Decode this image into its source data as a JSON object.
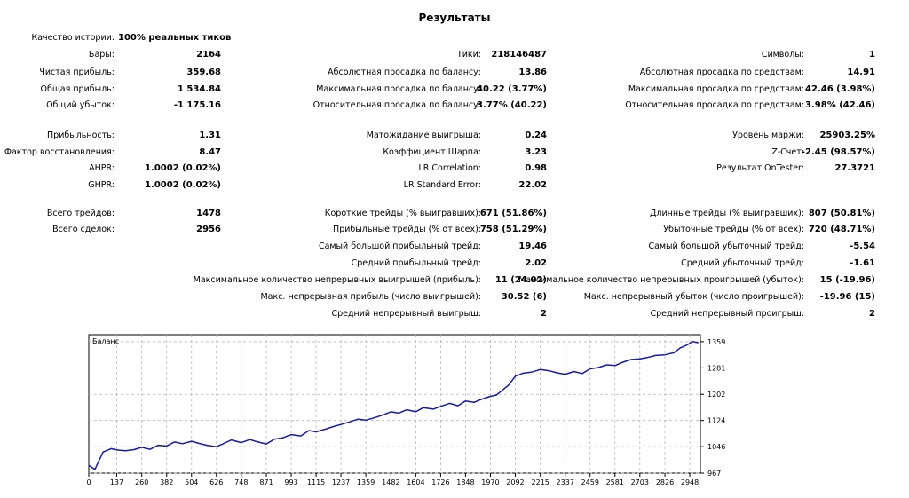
{
  "title": "Результаты",
  "history_quality": {
    "label": "Качество истории:",
    "value": "100% реальных тиков"
  },
  "col1": [
    {
      "id": "bars",
      "label": "Бары:",
      "value": "2164"
    },
    {
      "id": "net-profit",
      "label": "Чистая прибыль:",
      "value": "359.68"
    },
    {
      "id": "gross-profit",
      "label": "Общая прибыль:",
      "value": "1 534.84"
    },
    {
      "id": "gross-loss",
      "label": "Общий убыток:",
      "value": "-1 175.16"
    },
    {
      "id": "profitability",
      "label": "Прибыльность:",
      "value": "1.31"
    },
    {
      "id": "recovery-factor",
      "label": "Фактор восстановления:",
      "value": "8.47"
    },
    {
      "id": "ahpr",
      "label": "AHPR:",
      "value": "1.0002 (0.02%)"
    },
    {
      "id": "ghpr",
      "label": "GHPR:",
      "value": "1.0002 (0.02%)"
    },
    {
      "id": "total-trades",
      "label": "Всего трейдов:",
      "value": "1478"
    },
    {
      "id": "total-deals",
      "label": "Всего сделок:",
      "value": "2956"
    }
  ],
  "col2": [
    {
      "id": "ticks",
      "label": "Тики:",
      "value": "218146487"
    },
    {
      "id": "abs-dd-balance",
      "label": "Абсолютная просадка по балансу:",
      "value": "13.86"
    },
    {
      "id": "max-dd-balance",
      "label": "Максимальная просадка по балансу:",
      "value": "40.22 (3.77%)"
    },
    {
      "id": "rel-dd-balance",
      "label": "Относительная просадка по балансу:",
      "value": "3.77% (40.22)"
    },
    {
      "id": "expected-payoff",
      "label": "Матожидание выигрыша:",
      "value": "0.24"
    },
    {
      "id": "sharpe",
      "label": "Коэффициент Шарпа:",
      "value": "3.23"
    },
    {
      "id": "lr-correlation",
      "label": "LR Correlation:",
      "value": "0.98"
    },
    {
      "id": "lr-std-error",
      "label": "LR Standard Error:",
      "value": "22.02"
    },
    {
      "id": "short-trades",
      "label": "Короткие трейды (% выигравших):",
      "value": "671 (51.86%)"
    },
    {
      "id": "profit-trades",
      "label": "Прибыльные трейды (% от всех):",
      "value": "758 (51.29%)"
    },
    {
      "id": "largest-profit",
      "label": "Самый большой прибыльный трейд:",
      "value": "19.46"
    },
    {
      "id": "avg-profit",
      "label": "Средний прибыльный трейд:",
      "value": "2.02"
    },
    {
      "id": "max-consec-wins",
      "label": "Максимальное количество непрерывных выигрышей (прибыль):",
      "value": "11 (24.02)"
    },
    {
      "id": "max-consec-profit",
      "label": "Макс. непрерывная прибыль (число выигрышей):",
      "value": "30.52 (6)"
    },
    {
      "id": "avg-consec-wins",
      "label": "Средний непрерывный выигрыш:",
      "value": "2"
    }
  ],
  "col3": [
    {
      "id": "symbols",
      "label": "Символы:",
      "value": "1"
    },
    {
      "id": "abs-dd-equity",
      "label": "Абсолютная просадка по средствам:",
      "value": "14.91"
    },
    {
      "id": "max-dd-equity",
      "label": "Максимальная просадка по средствам:",
      "value": "42.46 (3.98%)"
    },
    {
      "id": "rel-dd-equity",
      "label": "Относительная просадка по средствам:",
      "value": "3.98% (42.46)"
    },
    {
      "id": "margin-level",
      "label": "Уровень маржи:",
      "value": "25903.25%"
    },
    {
      "id": "z-score",
      "label": "Z-Счет:",
      "value": "-2.45 (98.57%)"
    },
    {
      "id": "ontester",
      "label": "Результат OnTester:",
      "value": "27.3721"
    },
    {
      "id": "long-trades",
      "label": "Длинные трейды (% выигравших):",
      "value": "807 (50.81%)"
    },
    {
      "id": "loss-trades",
      "label": "Убыточные трейды (% от всех):",
      "value": "720 (48.71%)"
    },
    {
      "id": "largest-loss",
      "label": "Самый большой убыточный трейд:",
      "value": "-5.54"
    },
    {
      "id": "avg-loss",
      "label": "Средний убыточный трейд:",
      "value": "-1.61"
    },
    {
      "id": "max-consec-losses",
      "label": "Максимальное количество непрерывных проигрышей (убыток):",
      "value": "15 (-19.96)"
    },
    {
      "id": "max-consec-loss",
      "label": "Макс. непрерывный убыток (число проигрышей):",
      "value": "-19.96 (15)"
    },
    {
      "id": "avg-consec-losses",
      "label": "Средний непрерывный проигрыш:",
      "value": "2"
    }
  ],
  "chart_data": {
    "type": "line",
    "title": "Баланс",
    "xlabel": "",
    "ylabel": "",
    "x_ticks": [
      0,
      137,
      260,
      382,
      504,
      626,
      748,
      871,
      993,
      1115,
      1237,
      1359,
      1482,
      1604,
      1726,
      1848,
      1970,
      2092,
      2215,
      2337,
      2459,
      2581,
      2703,
      2826,
      2948
    ],
    "y_ticks": [
      967,
      1046,
      1124,
      1202,
      1281,
      1359
    ],
    "xlim": [
      0,
      3000
    ],
    "ylim": [
      967,
      1380
    ],
    "grid": true,
    "line_color": "#1a1aa0",
    "series": [
      {
        "name": "",
        "x": [
          0,
          30,
          70,
          110,
          137,
          180,
          220,
          260,
          300,
          340,
          382,
          420,
          460,
          504,
          540,
          580,
          626,
          660,
          700,
          748,
          790,
          830,
          871,
          910,
          950,
          993,
          1040,
          1080,
          1115,
          1160,
          1200,
          1237,
          1280,
          1320,
          1359,
          1400,
          1440,
          1482,
          1520,
          1560,
          1604,
          1640,
          1690,
          1726,
          1770,
          1810,
          1848,
          1890,
          1930,
          1970,
          2000,
          2040,
          2060,
          2092,
          2130,
          2170,
          2215,
          2260,
          2300,
          2337,
          2380,
          2420,
          2459,
          2500,
          2540,
          2581,
          2620,
          2660,
          2703,
          2740,
          2780,
          2826,
          2870,
          2900,
          2930,
          2948,
          2960,
          2990
        ],
        "y": [
          990,
          978,
          1030,
          1040,
          1036,
          1034,
          1037,
          1044,
          1038,
          1050,
          1048,
          1060,
          1055,
          1062,
          1056,
          1050,
          1046,
          1055,
          1066,
          1058,
          1067,
          1060,
          1054,
          1068,
          1072,
          1082,
          1078,
          1094,
          1090,
          1098,
          1106,
          1112,
          1120,
          1128,
          1125,
          1132,
          1140,
          1150,
          1146,
          1156,
          1150,
          1162,
          1158,
          1166,
          1175,
          1168,
          1182,
          1178,
          1188,
          1196,
          1200,
          1220,
          1230,
          1256,
          1265,
          1268,
          1276,
          1272,
          1266,
          1262,
          1270,
          1264,
          1278,
          1282,
          1290,
          1288,
          1298,
          1306,
          1308,
          1312,
          1318,
          1320,
          1326,
          1340,
          1348,
          1354,
          1360,
          1356
        ]
      }
    ]
  }
}
